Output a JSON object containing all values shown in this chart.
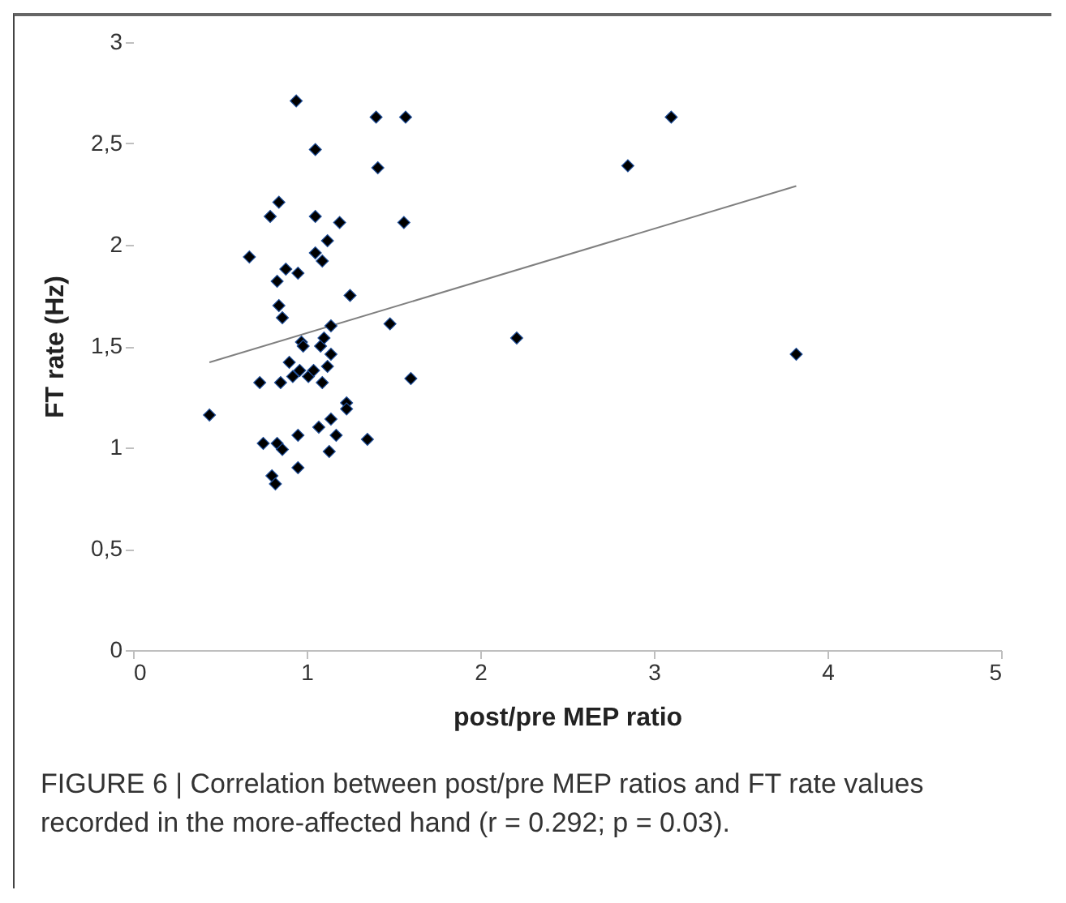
{
  "chart_data": {
    "type": "scatter",
    "xlabel": "post/pre MEP ratio",
    "ylabel": "FT rate (Hz)",
    "xlim": [
      0,
      5
    ],
    "xticks": [
      0,
      1,
      2,
      3,
      4,
      5
    ],
    "ylim": [
      0,
      3
    ],
    "yticks": [
      0,
      {
        "value": 0.5,
        "label": "0,5"
      },
      1,
      {
        "value": 1.5,
        "label": "1,5"
      },
      2,
      {
        "value": 2.5,
        "label": "2,5"
      },
      3
    ],
    "grid": false,
    "series": [
      {
        "color": "#000000",
        "marker": "diamond",
        "x": [
          0.44,
          0.67,
          0.73,
          0.75,
          0.79,
          0.8,
          0.82,
          0.83,
          0.84,
          0.84,
          0.83,
          0.85,
          0.86,
          0.86,
          0.88,
          0.9,
          0.92,
          0.94,
          0.95,
          0.95,
          0.95,
          0.96,
          0.97,
          0.98,
          1.01,
          1.04,
          1.05,
          1.05,
          1.05,
          1.07,
          1.08,
          1.09,
          1.09,
          1.1,
          1.12,
          1.12,
          1.13,
          1.14,
          1.14,
          1.14,
          1.17,
          1.19,
          1.23,
          1.23,
          1.25,
          1.35,
          1.4,
          1.41,
          1.48,
          1.56,
          1.57,
          1.6,
          2.21,
          2.85,
          3.1,
          3.82
        ],
        "values": [
          1.16,
          1.94,
          1.32,
          1.02,
          2.14,
          0.86,
          0.82,
          1.82,
          2.21,
          1.7,
          1.02,
          1.32,
          1.64,
          0.99,
          1.88,
          1.42,
          1.35,
          2.71,
          1.86,
          1.06,
          0.9,
          1.38,
          1.52,
          1.5,
          1.35,
          1.38,
          2.47,
          2.14,
          1.96,
          1.1,
          1.5,
          1.92,
          1.32,
          1.54,
          2.02,
          1.4,
          0.98,
          1.6,
          1.46,
          1.14,
          1.06,
          2.11,
          1.22,
          1.19,
          1.75,
          1.04,
          2.63,
          2.38,
          1.61,
          2.11,
          2.63,
          1.34,
          1.54,
          2.39,
          2.63,
          1.46
        ]
      },
      {
        "type": "line",
        "color": "#808080",
        "x": [
          0.44,
          3.82
        ],
        "values": [
          1.42,
          2.29
        ]
      }
    ],
    "annotations": [
      "FIGURE 6 | Correlation between post/pre MEP ratios and FT rate values recorded in the more-affected hand (r = 0.292; p = 0.03)."
    ]
  }
}
